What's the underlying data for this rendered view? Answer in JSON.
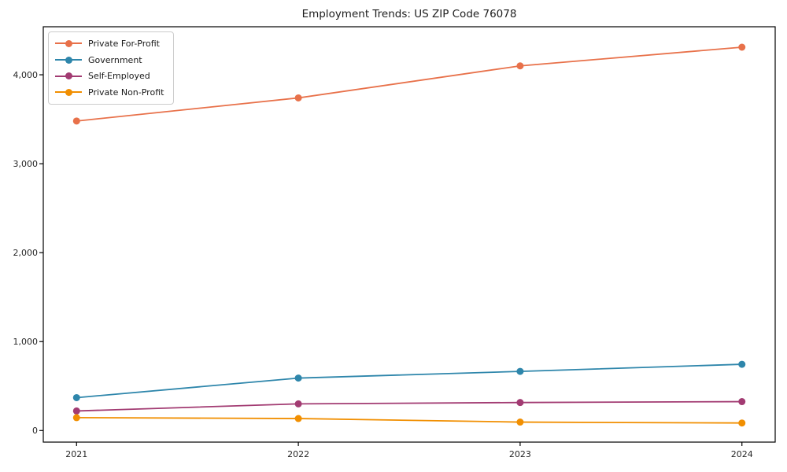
{
  "chart_data": {
    "type": "line",
    "title": "Employment Trends: US ZIP Code 76078",
    "x": [
      2021,
      2022,
      2023,
      2024
    ],
    "x_tick_labels": [
      "2021",
      "2022",
      "2023",
      "2024"
    ],
    "series": [
      {
        "name": "Private For-Profit",
        "color": "#E8714A",
        "values": [
          3480,
          3740,
          4100,
          4310
        ]
      },
      {
        "name": "Government",
        "color": "#2E86AB",
        "values": [
          370,
          590,
          665,
          745
        ]
      },
      {
        "name": "Self-Employed",
        "color": "#A23B72",
        "values": [
          220,
          300,
          315,
          325
        ]
      },
      {
        "name": "Private Non-Profit",
        "color": "#F18F01",
        "values": [
          145,
          135,
          95,
          85
        ]
      }
    ],
    "y_ticks": [
      0,
      1000,
      2000,
      3000,
      4000
    ],
    "y_tick_labels": [
      "0",
      "1,000",
      "2,000",
      "3,000",
      "4,000"
    ],
    "xlim": [
      2020.85,
      2024.15
    ],
    "ylim": [
      -130,
      4540
    ],
    "xlabel": "",
    "ylabel": "",
    "grid": false,
    "legend_position": "upper left",
    "frame_color": "#000000",
    "line_width": 1.8,
    "marker_radius": 4.5
  }
}
